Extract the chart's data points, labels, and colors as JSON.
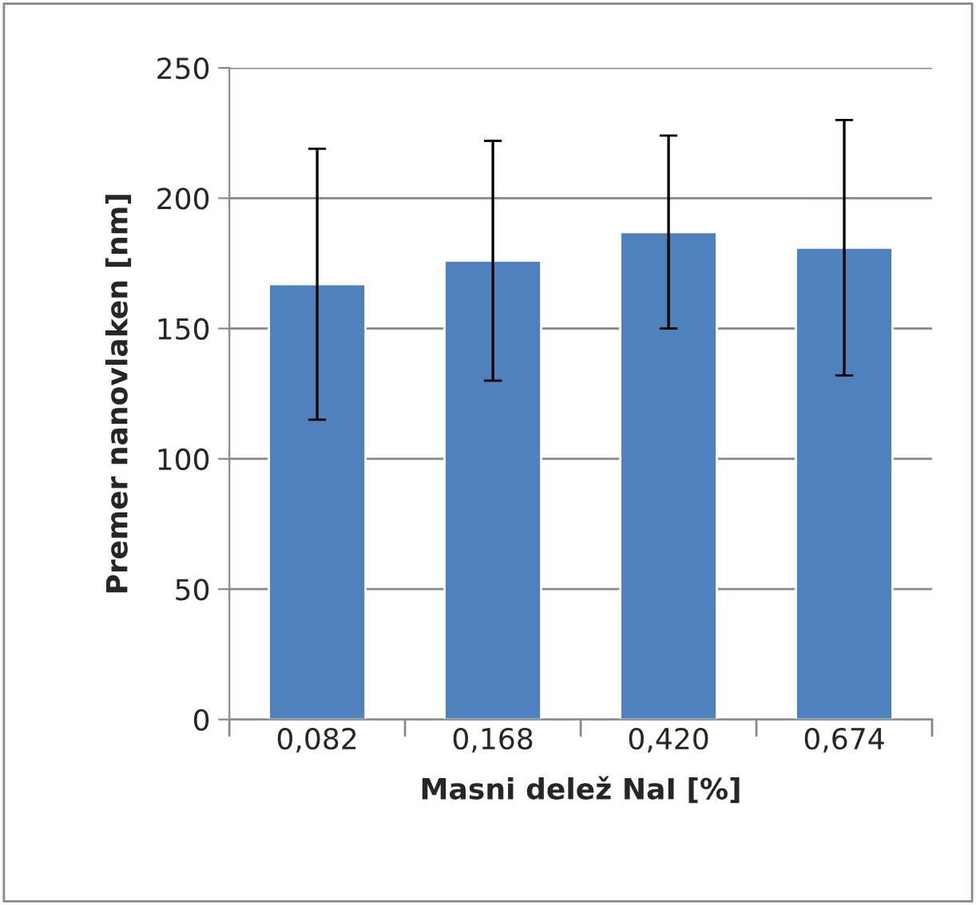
{
  "chart_data": {
    "type": "bar",
    "xlabel": "Masni delež NaI [%]",
    "ylabel": "Premer nanovlaken [nm]",
    "categories": [
      "0,082",
      "0,168",
      "0,420",
      "0,674"
    ],
    "values": [
      167,
      176,
      187,
      181
    ],
    "errors": [
      52,
      46,
      37,
      49
    ],
    "color": "#4f81bd",
    "ylim": [
      0,
      250
    ],
    "yticks": [
      0,
      50,
      100,
      150,
      200,
      250
    ],
    "grid": "y",
    "legend": false
  }
}
